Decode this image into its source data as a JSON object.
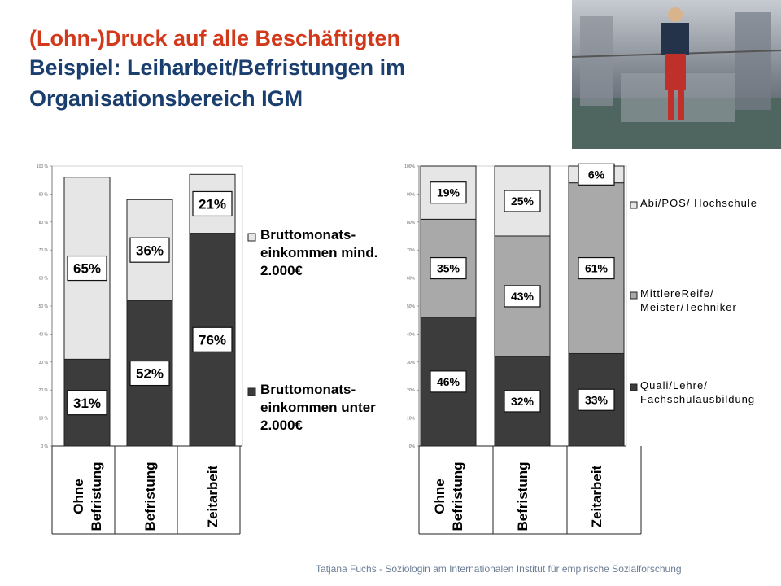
{
  "header": {
    "title_line1": "(Lohn-)Druck auf alle Beschäftigten",
    "title_line2": "Beispiel: Leiharbeit/Befristungen im",
    "title_line3": "Organisationsbereich IGM"
  },
  "photo": {
    "icon": "worker-in-factory-photo"
  },
  "footer": {
    "text": "Tatjana Fuchs - Soziologin am Internationalen Institut für empirische Sozialforschung"
  },
  "colors": {
    "dark": "#3c3c3c",
    "mid": "#a9a9a9",
    "light": "#e6e6e6",
    "title_red": "#d2381a",
    "title_blue": "#1a3e6e"
  },
  "chart_data": [
    {
      "type": "bar",
      "stacked": true,
      "categories": [
        [
          "Ohne",
          "Befristung"
        ],
        [
          "Befristung"
        ],
        [
          "Zeitarbeit"
        ]
      ],
      "ylim": [
        0,
        100
      ],
      "yticks": [
        "0 %",
        "10 %",
        "20 %",
        "30 %",
        "40 %",
        "50 %",
        "60 %",
        "70 %",
        "80 %",
        "90 %",
        "100 %"
      ],
      "grid": false,
      "legend_position": "right",
      "series": [
        {
          "name": "Bruttomonats-einkommen unter 2.000€",
          "legend_lines": [
            "Bruttomonats-",
            "einkommen unter",
            "2.000€"
          ],
          "values": [
            31,
            52,
            76
          ],
          "labels": [
            "31%",
            "52%",
            "76%"
          ],
          "color": "#3c3c3c"
        },
        {
          "name": "Bruttomonats-einkommen mind. 2.000€",
          "legend_lines": [
            "Bruttomonats-",
            "einkommen mind.",
            "2.000€"
          ],
          "values": [
            65,
            36,
            21
          ],
          "labels": [
            "65%",
            "36%",
            "21%"
          ],
          "color": "#e6e6e6"
        }
      ]
    },
    {
      "type": "bar",
      "stacked": true,
      "categories": [
        [
          "Ohne",
          "Befristung"
        ],
        [
          "Befristung"
        ],
        [
          "Zeitarbeit"
        ]
      ],
      "ylim": [
        0,
        100
      ],
      "yticks": [
        "0%",
        "10%",
        "20%",
        "30%",
        "40%",
        "50%",
        "60%",
        "70%",
        "80%",
        "90%",
        "100%"
      ],
      "grid": false,
      "legend_position": "right",
      "series": [
        {
          "name": "Quali/Lehre/ Fachschulausbildung",
          "legend_lines": [
            "Quali/Lehre/",
            "Fachschulausbildung"
          ],
          "values": [
            46,
            32,
            33
          ],
          "labels": [
            "46%",
            "32%",
            "33%"
          ],
          "color": "#3c3c3c"
        },
        {
          "name": "MittlereReife/ Meister/Techniker",
          "legend_lines": [
            "MittlereReife/",
            "Meister/Techniker"
          ],
          "values": [
            35,
            43,
            61
          ],
          "labels": [
            "35%",
            "43%",
            "61%"
          ],
          "color": "#a9a9a9"
        },
        {
          "name": "Abi/POS/ Hochschule",
          "legend_lines": [
            "Abi/POS/ Hochschule"
          ],
          "values": [
            19,
            25,
            6
          ],
          "labels": [
            "19%",
            "25%",
            "6%"
          ],
          "color": "#e6e6e6"
        }
      ]
    }
  ]
}
